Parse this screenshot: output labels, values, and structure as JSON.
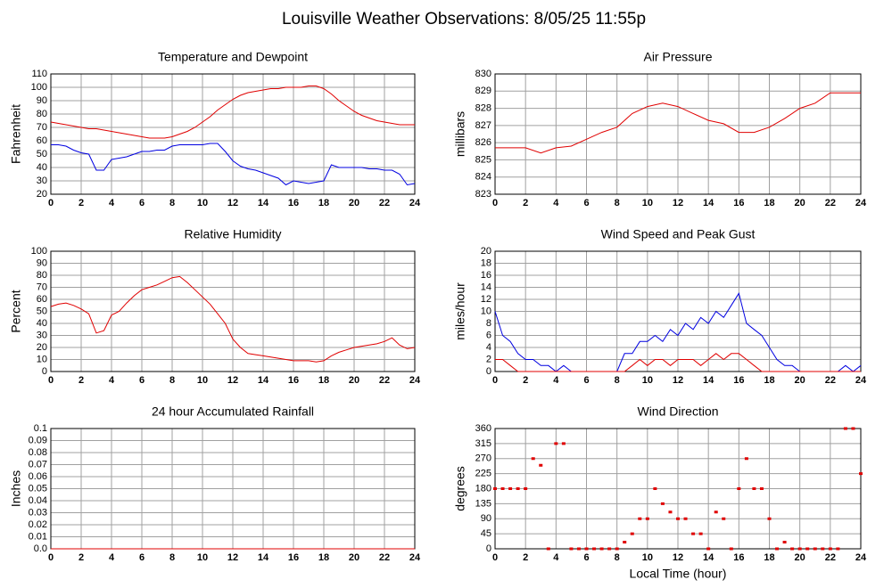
{
  "title": "Louisville Weather Observations: 8/05/25 11:55p",
  "chart_data": [
    {
      "type": "line",
      "title": "Temperature and Dewpoint",
      "ylabel": "Fahrenheit",
      "x": [
        0,
        0.5,
        1,
        1.5,
        2,
        2.5,
        3,
        3.5,
        4,
        4.5,
        5,
        5.5,
        6,
        6.5,
        7,
        7.5,
        8,
        8.5,
        9,
        9.5,
        10,
        10.5,
        11,
        11.5,
        12,
        12.5,
        13,
        13.5,
        14,
        14.5,
        15,
        15.5,
        16,
        16.5,
        17,
        17.5,
        18,
        18.5,
        19,
        19.5,
        20,
        20.5,
        21,
        21.5,
        22,
        22.5,
        23,
        23.5,
        24
      ],
      "xlim": [
        0,
        24
      ],
      "xticks": [
        0,
        2,
        4,
        6,
        8,
        10,
        12,
        14,
        16,
        18,
        20,
        22,
        24
      ],
      "ylim": [
        20,
        110
      ],
      "yticks": [
        20,
        30,
        40,
        50,
        60,
        70,
        80,
        90,
        100,
        110
      ],
      "grid": true,
      "series": [
        {
          "color": "#e00000",
          "values": [
            74,
            73,
            72,
            71,
            70,
            69,
            69,
            68,
            67,
            66,
            65,
            64,
            63,
            62,
            62,
            62,
            63,
            65,
            67,
            70,
            74,
            78,
            83,
            87,
            91,
            94,
            96,
            97,
            98,
            99,
            99,
            100,
            100,
            100,
            101,
            101,
            99,
            95,
            90,
            86,
            82,
            79,
            77,
            75,
            74,
            73,
            72,
            72,
            72
          ]
        },
        {
          "color": "#0000e0",
          "values": [
            57,
            57,
            56,
            53,
            51,
            50,
            38,
            38,
            46,
            47,
            48,
            50,
            52,
            52,
            53,
            53,
            56,
            57,
            57,
            57,
            57,
            58,
            58,
            52,
            45,
            41,
            39,
            38,
            36,
            34,
            32,
            27,
            30,
            29,
            28,
            29,
            30,
            42,
            40,
            40,
            40,
            40,
            39,
            39,
            38,
            38,
            35,
            27,
            28
          ]
        }
      ]
    },
    {
      "type": "line",
      "title": "Air Pressure",
      "ylabel": "millibars",
      "x": [
        0,
        1,
        2,
        3,
        4,
        5,
        6,
        7,
        8,
        9,
        10,
        11,
        12,
        13,
        14,
        15,
        16,
        17,
        18,
        19,
        20,
        21,
        22,
        23,
        24
      ],
      "xlim": [
        0,
        24
      ],
      "xticks": [
        0,
        2,
        4,
        6,
        8,
        10,
        12,
        14,
        16,
        18,
        20,
        22,
        24
      ],
      "ylim": [
        823,
        830
      ],
      "yticks": [
        823,
        824,
        825,
        826,
        827,
        828,
        829,
        830
      ],
      "grid": true,
      "series": [
        {
          "color": "#e00000",
          "values": [
            825.7,
            825.7,
            825.7,
            825.4,
            825.7,
            825.8,
            826.2,
            826.6,
            826.9,
            827.7,
            828.1,
            828.3,
            828.1,
            827.7,
            827.3,
            827.1,
            826.6,
            826.6,
            826.9,
            827.4,
            828,
            828.3,
            828.9,
            828.9,
            828.9
          ]
        }
      ]
    },
    {
      "type": "line",
      "title": "Relative Humidity",
      "ylabel": "Percent",
      "x": [
        0,
        0.5,
        1,
        1.5,
        2,
        2.5,
        3,
        3.5,
        4,
        4.5,
        5,
        5.5,
        6,
        6.5,
        7,
        7.5,
        8,
        8.5,
        9,
        9.5,
        10,
        10.5,
        11,
        11.5,
        12,
        12.5,
        13,
        13.5,
        14,
        14.5,
        15,
        15.5,
        16,
        16.5,
        17,
        17.5,
        18,
        18.5,
        19,
        19.5,
        20,
        20.5,
        21,
        21.5,
        22,
        22.5,
        23,
        23.5,
        24
      ],
      "xlim": [
        0,
        24
      ],
      "xticks": [
        0,
        2,
        4,
        6,
        8,
        10,
        12,
        14,
        16,
        18,
        20,
        22,
        24
      ],
      "ylim": [
        0,
        100
      ],
      "yticks": [
        0,
        10,
        20,
        30,
        40,
        50,
        60,
        70,
        80,
        90,
        100
      ],
      "grid": true,
      "series": [
        {
          "color": "#e00000",
          "values": [
            54,
            56,
            57,
            55,
            52,
            48,
            32,
            34,
            47,
            50,
            57,
            63,
            68,
            70,
            72,
            75,
            78,
            79,
            74,
            68,
            62,
            56,
            48,
            40,
            27,
            20,
            15,
            14,
            13,
            12,
            11,
            10,
            9,
            9,
            9,
            8,
            9,
            13,
            16,
            18,
            20,
            21,
            22,
            23,
            25,
            28,
            22,
            19,
            20
          ]
        }
      ]
    },
    {
      "type": "line",
      "title": "Wind Speed and Peak Gust",
      "ylabel": "miles/hour",
      "x": [
        0,
        0.5,
        1,
        1.5,
        2,
        2.5,
        3,
        3.5,
        4,
        4.5,
        5,
        5.5,
        6,
        6.5,
        7,
        7.5,
        8,
        8.5,
        9,
        9.5,
        10,
        10.5,
        11,
        11.5,
        12,
        12.5,
        13,
        13.5,
        14,
        14.5,
        15,
        15.5,
        16,
        16.5,
        17,
        17.5,
        18,
        18.5,
        19,
        19.5,
        20,
        20.5,
        21,
        21.5,
        22,
        22.5,
        23,
        23.5,
        24
      ],
      "xlim": [
        0,
        24
      ],
      "xticks": [
        0,
        2,
        4,
        6,
        8,
        10,
        12,
        14,
        16,
        18,
        20,
        22,
        24
      ],
      "ylim": [
        0,
        20
      ],
      "yticks": [
        0,
        2,
        4,
        6,
        8,
        10,
        12,
        14,
        16,
        18,
        20
      ],
      "grid": true,
      "series": [
        {
          "color": "#0000e0",
          "values": [
            10,
            6,
            5,
            3,
            2,
            2,
            1,
            1,
            0,
            1,
            0,
            0,
            0,
            0,
            0,
            0,
            0,
            3,
            3,
            5,
            5,
            6,
            5,
            7,
            6,
            8,
            7,
            9,
            8,
            10,
            9,
            11,
            13,
            8,
            7,
            6,
            4,
            2,
            1,
            1,
            0,
            0,
            0,
            0,
            0,
            0,
            1,
            0,
            1
          ]
        },
        {
          "color": "#e00000",
          "values": [
            2,
            2,
            1,
            0,
            0,
            0,
            0,
            0,
            0,
            0,
            0,
            0,
            0,
            0,
            0,
            0,
            0,
            0,
            1,
            2,
            1,
            2,
            2,
            1,
            2,
            2,
            2,
            1,
            2,
            3,
            2,
            3,
            3,
            2,
            1,
            0,
            0,
            0,
            0,
            0,
            0,
            0,
            0,
            0,
            0,
            0,
            0,
            0,
            0
          ]
        }
      ]
    },
    {
      "type": "line",
      "title": "24 hour Accumulated Rainfall",
      "ylabel": "Inches",
      "x": [
        0,
        24
      ],
      "xlim": [
        0,
        24
      ],
      "xticks": [
        0,
        2,
        4,
        6,
        8,
        10,
        12,
        14,
        16,
        18,
        20,
        22,
        24
      ],
      "ylim": [
        0,
        0.1
      ],
      "yticks": [
        {
          "value": 0,
          "label": "0.0"
        },
        0.01,
        0.02,
        0.03,
        0.04,
        0.05,
        0.06,
        0.07,
        0.08,
        0.09,
        0.1
      ],
      "grid": true,
      "series": [
        {
          "color": "#e00000",
          "values": [
            0,
            0
          ]
        }
      ]
    },
    {
      "type": "scatter",
      "title": "Wind Direction",
      "ylabel": "degrees",
      "xlabel": "Local Time (hour)",
      "x": [
        0,
        0.5,
        1,
        1.5,
        2,
        2.5,
        3,
        3.5,
        4,
        4.5,
        5,
        5.5,
        6,
        6.5,
        7,
        7.5,
        8,
        8.5,
        9,
        9.5,
        10,
        10.5,
        11,
        11.5,
        12,
        12.5,
        13,
        13.5,
        14,
        14.5,
        15,
        15.5,
        16,
        16.5,
        17,
        17.5,
        18,
        18.5,
        19,
        19.5,
        20,
        20.5,
        21,
        21.5,
        22,
        22.5,
        23,
        23.5,
        24
      ],
      "xlim": [
        0,
        24
      ],
      "xticks": [
        0,
        2,
        4,
        6,
        8,
        10,
        12,
        14,
        16,
        18,
        20,
        22,
        24
      ],
      "ylim": [
        0,
        360
      ],
      "yticks": [
        0,
        45,
        90,
        135,
        180,
        225,
        270,
        315,
        360
      ],
      "grid": true,
      "series": [
        {
          "color": "#e00000",
          "values": [
            180,
            180,
            180,
            180,
            180,
            270,
            250,
            0,
            315,
            315,
            0,
            0,
            0,
            0,
            0,
            0,
            0,
            20,
            45,
            90,
            90,
            180,
            135,
            110,
            90,
            90,
            45,
            45,
            0,
            110,
            90,
            0,
            180,
            270,
            180,
            180,
            90,
            0,
            20,
            0,
            0,
            0,
            0,
            0,
            0,
            0,
            360,
            360,
            225
          ]
        }
      ]
    }
  ]
}
